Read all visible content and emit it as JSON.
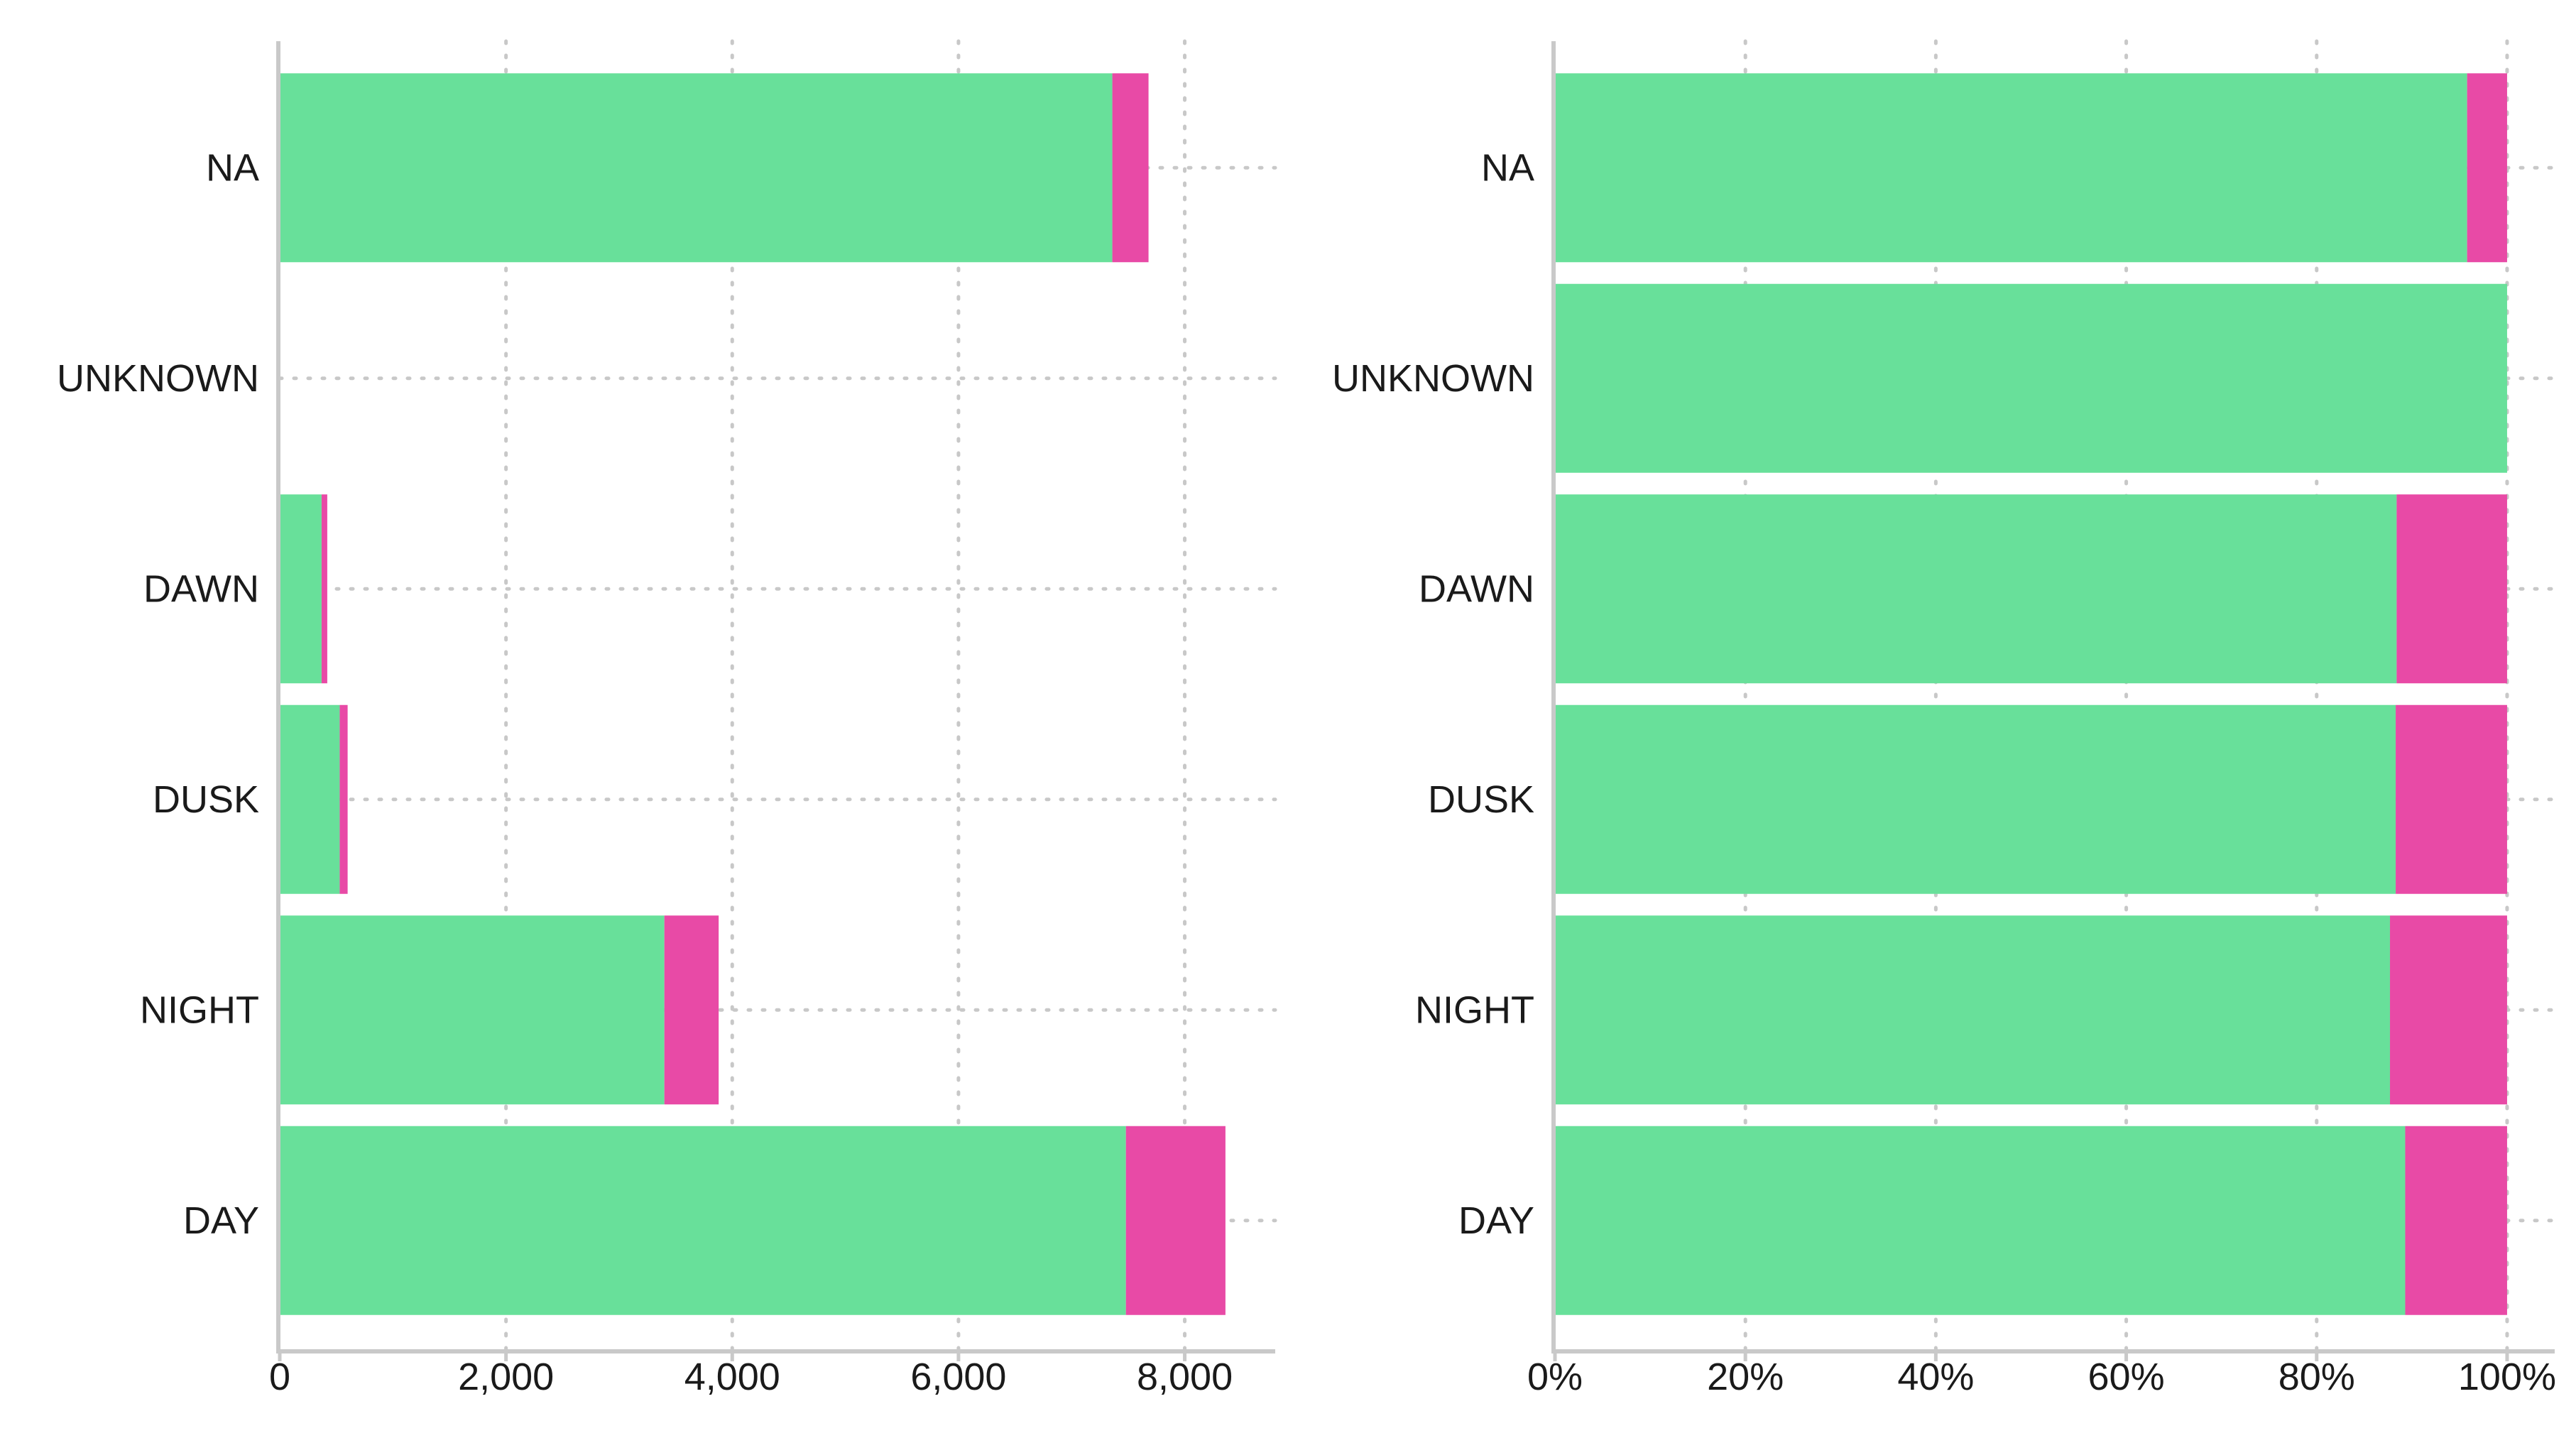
{
  "colors": {
    "series_1": "#68e09a",
    "series_2": "#e84aa6"
  },
  "chart_data": [
    {
      "type": "bar",
      "orientation": "horizontal",
      "stacked": true,
      "categories": [
        "DAY",
        "NIGHT",
        "DUSK",
        "DAWN",
        "UNKNOWN",
        "NA"
      ],
      "series": [
        {
          "values": [
            7480,
            3400,
            530,
            370,
            0,
            7360
          ]
        },
        {
          "values": [
            880,
            480,
            70,
            50,
            0,
            320
          ]
        }
      ],
      "xlim": [
        0,
        8800
      ],
      "x_ticks": [
        0,
        2000,
        4000,
        6000,
        8000
      ],
      "x_tick_labels": [
        "0",
        "2,000",
        "4,000",
        "6,000",
        "8,000"
      ],
      "grid": {
        "x": true,
        "y": true,
        "style": "dotted"
      },
      "title": "",
      "xlabel": "",
      "ylabel": ""
    },
    {
      "type": "bar",
      "orientation": "horizontal",
      "stacked": true,
      "normalized": true,
      "categories": [
        "DAY",
        "NIGHT",
        "DUSK",
        "DAWN",
        "UNKNOWN",
        "NA"
      ],
      "series": [
        {
          "values": [
            89.3,
            87.7,
            88.3,
            88.4,
            100,
            95.8
          ]
        },
        {
          "values": [
            10.7,
            12.3,
            11.7,
            11.6,
            0,
            4.2
          ]
        }
      ],
      "xlim": [
        0,
        105
      ],
      "x_ticks": [
        0,
        20,
        40,
        60,
        80,
        100
      ],
      "x_tick_labels": [
        "0%",
        "20%",
        "40%",
        "60%",
        "80%",
        "100%"
      ],
      "grid": {
        "x": true,
        "y": true,
        "style": "dotted"
      },
      "title": "",
      "xlabel": "",
      "ylabel": ""
    }
  ]
}
